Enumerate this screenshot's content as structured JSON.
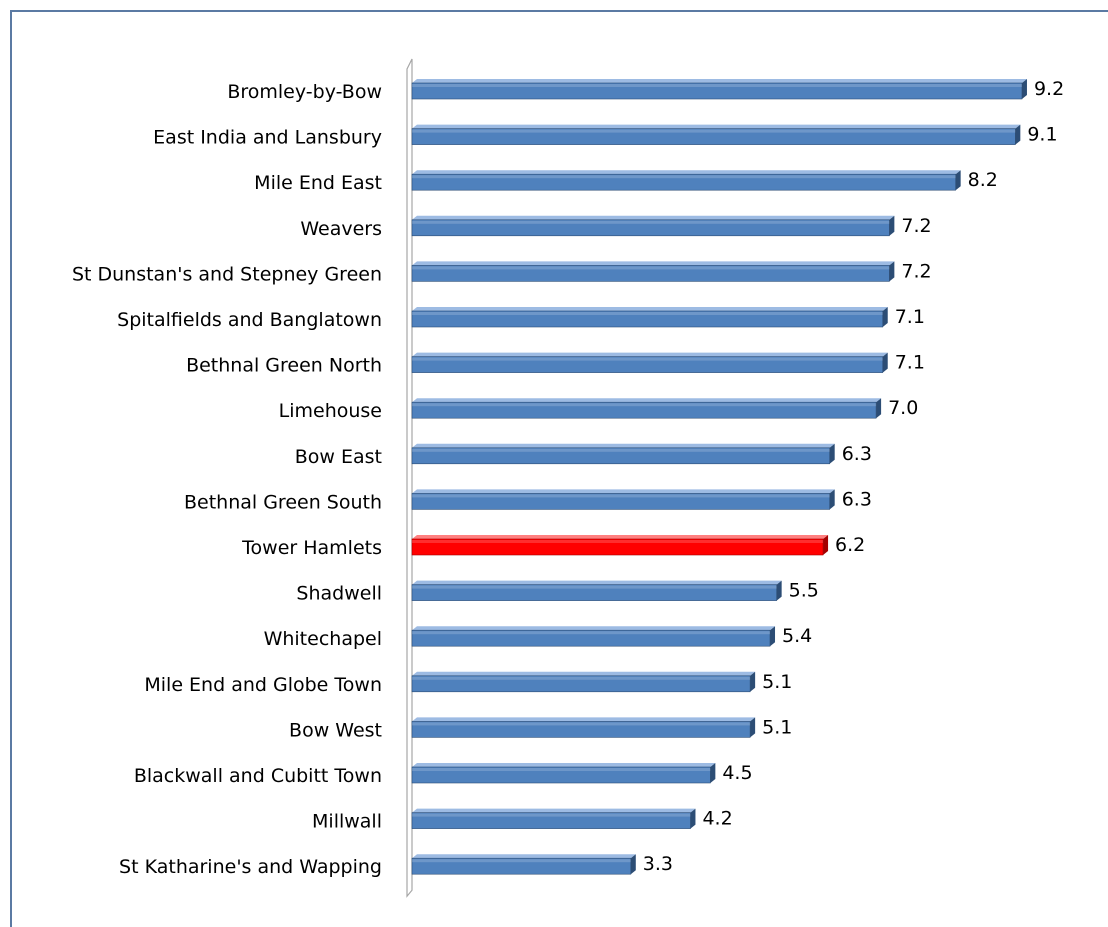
{
  "chart_data": {
    "type": "bar",
    "orientation": "horizontal",
    "style": "3d",
    "title": "",
    "xlabel": "",
    "ylabel": "",
    "grid": false,
    "legend": "none",
    "xlim": [
      0,
      9.7
    ],
    "categories": [
      "Bromley-by-Bow",
      "East India and Lansbury",
      "Mile End East",
      "Weavers",
      "St Dunstan's and Stepney Green",
      "Spitalfields and Banglatown",
      "Bethnal Green North",
      "Limehouse",
      "Bow East",
      "Bethnal Green South",
      "Tower Hamlets",
      "Shadwell",
      "Whitechapel",
      "Mile End and Globe Town",
      "Bow West",
      "Blackwall and Cubitt Town",
      "Millwall",
      "St Katharine's and Wapping"
    ],
    "values": [
      9.2,
      9.1,
      8.2,
      7.2,
      7.2,
      7.1,
      7.1,
      7.0,
      6.3,
      6.3,
      6.2,
      5.5,
      5.4,
      5.1,
      5.1,
      4.5,
      4.2,
      3.3
    ],
    "data_labels": [
      "9.2",
      "9.1",
      "8.2",
      "7.2",
      "7.2",
      "7.1",
      "7.1",
      "7.0",
      "6.3",
      "6.3",
      "6.2",
      "5.5",
      "5.4",
      "5.1",
      "5.1",
      "4.5",
      "4.2",
      "3.3"
    ],
    "highlight_category": "Tower Hamlets",
    "colors": {
      "bar": "#4f81bd",
      "bar_top": "#9dbbe3",
      "bar_side": "#2c4d75",
      "highlight": "#ff0000",
      "highlight_top": "#ff8080",
      "highlight_side": "#a30000",
      "frame": "#5b7aa3",
      "wall": "#a6a6a6"
    }
  }
}
